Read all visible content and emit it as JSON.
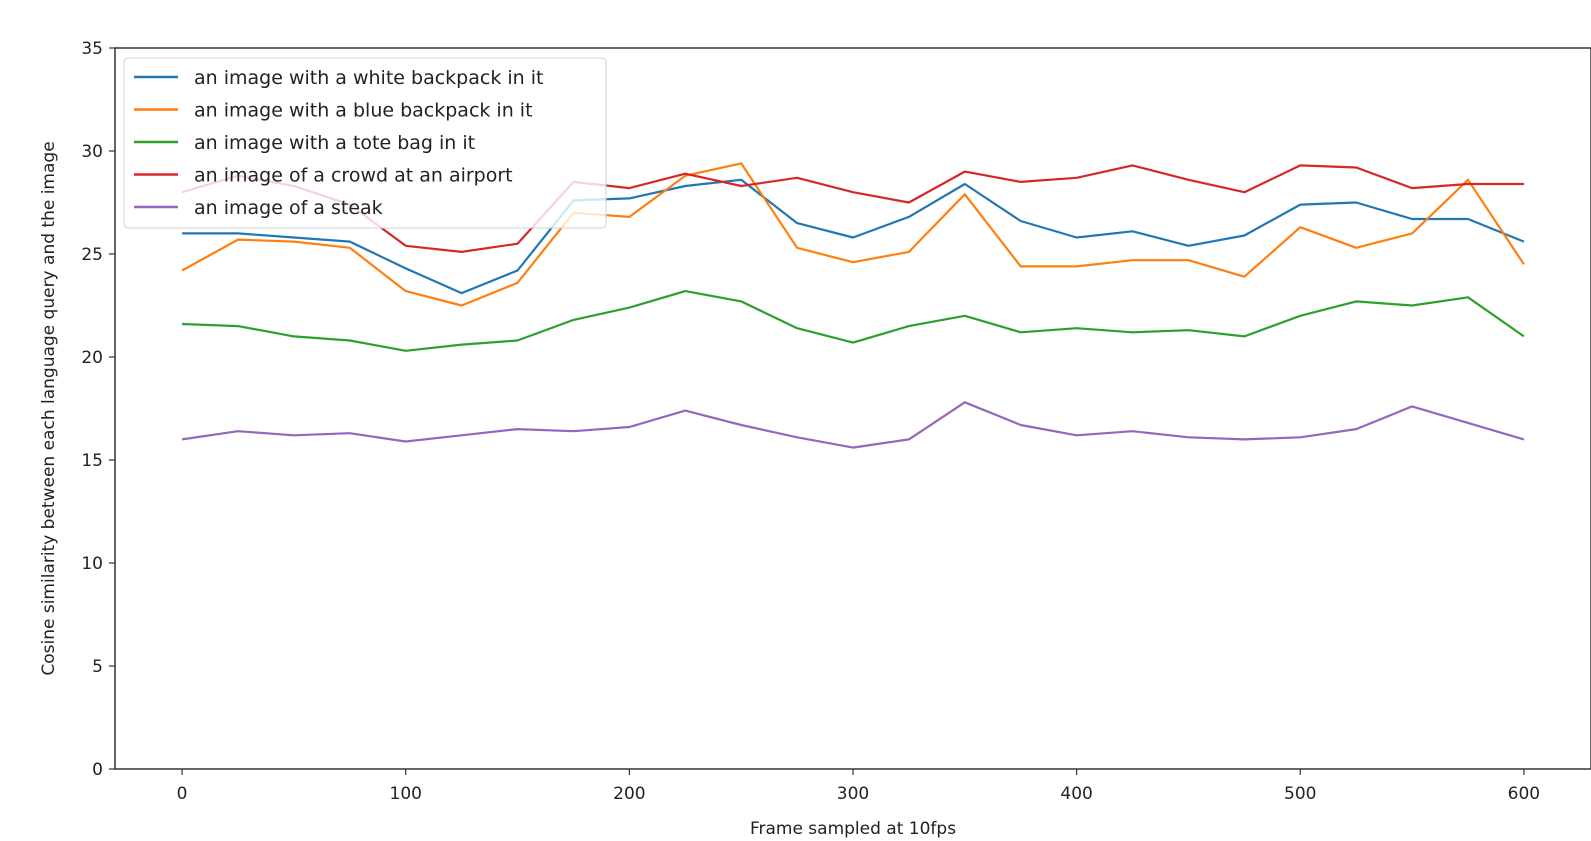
{
  "chart_data": {
    "type": "line",
    "title": "",
    "xlabel": "Frame sampled at 10fps",
    "ylabel": "Cosine similarity between each language query and  the image",
    "xlim": [
      -30,
      630
    ],
    "ylim": [
      0,
      35
    ],
    "xticks": [
      0,
      100,
      200,
      300,
      400,
      500,
      600
    ],
    "yticks": [
      0,
      5,
      10,
      15,
      20,
      25,
      30,
      35
    ],
    "grid": false,
    "legend_position": "top-left",
    "x": [
      0,
      25,
      50,
      75,
      100,
      125,
      150,
      175,
      200,
      225,
      250,
      275,
      300,
      325,
      350,
      375,
      400,
      425,
      450,
      475,
      500,
      525,
      550,
      575,
      600
    ],
    "series": [
      {
        "name": "an image with a white backpack in it",
        "color": "#1f77b4",
        "values": [
          26.0,
          26.0,
          25.8,
          25.6,
          24.3,
          23.1,
          24.2,
          27.6,
          27.7,
          28.3,
          28.6,
          26.5,
          25.8,
          26.8,
          28.4,
          26.6,
          25.8,
          26.1,
          25.4,
          25.9,
          27.4,
          27.5,
          26.7,
          26.7,
          25.6
        ]
      },
      {
        "name": "an image with a blue backpack in it",
        "color": "#ff7f0e",
        "values": [
          24.2,
          25.7,
          25.6,
          25.3,
          23.2,
          22.5,
          23.6,
          27.0,
          26.8,
          28.8,
          29.4,
          25.3,
          24.6,
          25.1,
          27.9,
          24.4,
          24.4,
          24.7,
          24.7,
          23.9,
          26.3,
          25.3,
          26.0,
          28.6,
          24.5
        ]
      },
      {
        "name": "an image with a tote bag in it",
        "color": "#2ca02c",
        "values": [
          21.6,
          21.5,
          21.0,
          20.8,
          20.3,
          20.6,
          20.8,
          21.8,
          22.4,
          23.2,
          22.7,
          21.4,
          20.7,
          21.5,
          22.0,
          21.2,
          21.4,
          21.2,
          21.3,
          21.0,
          22.0,
          22.7,
          22.5,
          22.9,
          21.0
        ]
      },
      {
        "name": "an image of a crowd at an airport",
        "color": "#d62728",
        "values": [
          28.0,
          28.8,
          28.3,
          27.4,
          25.4,
          25.1,
          25.5,
          28.5,
          28.2,
          28.9,
          28.3,
          28.7,
          28.0,
          27.5,
          29.0,
          28.5,
          28.7,
          29.3,
          28.6,
          28.0,
          29.3,
          29.2,
          28.2,
          28.4,
          28.4
        ]
      },
      {
        "name": "an image of a steak",
        "color": "#9467bd",
        "values": [
          16.0,
          16.4,
          16.2,
          16.3,
          15.9,
          16.2,
          16.5,
          16.4,
          16.6,
          17.4,
          16.7,
          16.1,
          15.6,
          16.0,
          17.8,
          16.7,
          16.2,
          16.4,
          16.1,
          16.0,
          16.1,
          16.5,
          17.6,
          16.8,
          16.0
        ]
      }
    ]
  }
}
